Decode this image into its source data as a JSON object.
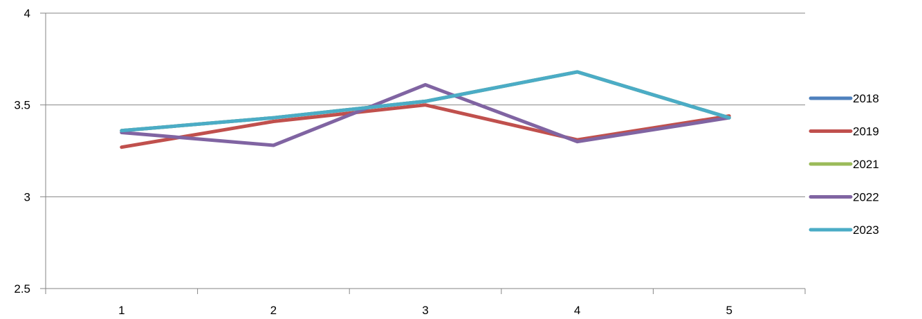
{
  "chart_data": {
    "type": "line",
    "title": "",
    "xlabel": "",
    "ylabel": "",
    "categories": [
      "1",
      "2",
      "3",
      "4",
      "5"
    ],
    "ylim": [
      2.5,
      4
    ],
    "y_ticks": [
      "2.5",
      "3",
      "3.5",
      "4"
    ],
    "grid": "horizontal",
    "legend_position": "right",
    "series": [
      {
        "name": "2018",
        "color": "#4F81BD",
        "values": [
          3.36,
          3.43,
          3.52,
          3.68,
          3.43
        ]
      },
      {
        "name": "2019",
        "color": "#C0504D",
        "values": [
          3.27,
          3.41,
          3.5,
          3.31,
          3.44
        ]
      },
      {
        "name": "2021",
        "color": "#9BBB59",
        "values": [
          3.36,
          3.43,
          3.52,
          3.68,
          3.43
        ]
      },
      {
        "name": "2022",
        "color": "#8064A2",
        "values": [
          3.35,
          3.28,
          3.61,
          3.3,
          3.43
        ]
      },
      {
        "name": "2023",
        "color": "#4BACC6",
        "values": [
          3.36,
          3.43,
          3.52,
          3.68,
          3.43
        ]
      }
    ]
  }
}
